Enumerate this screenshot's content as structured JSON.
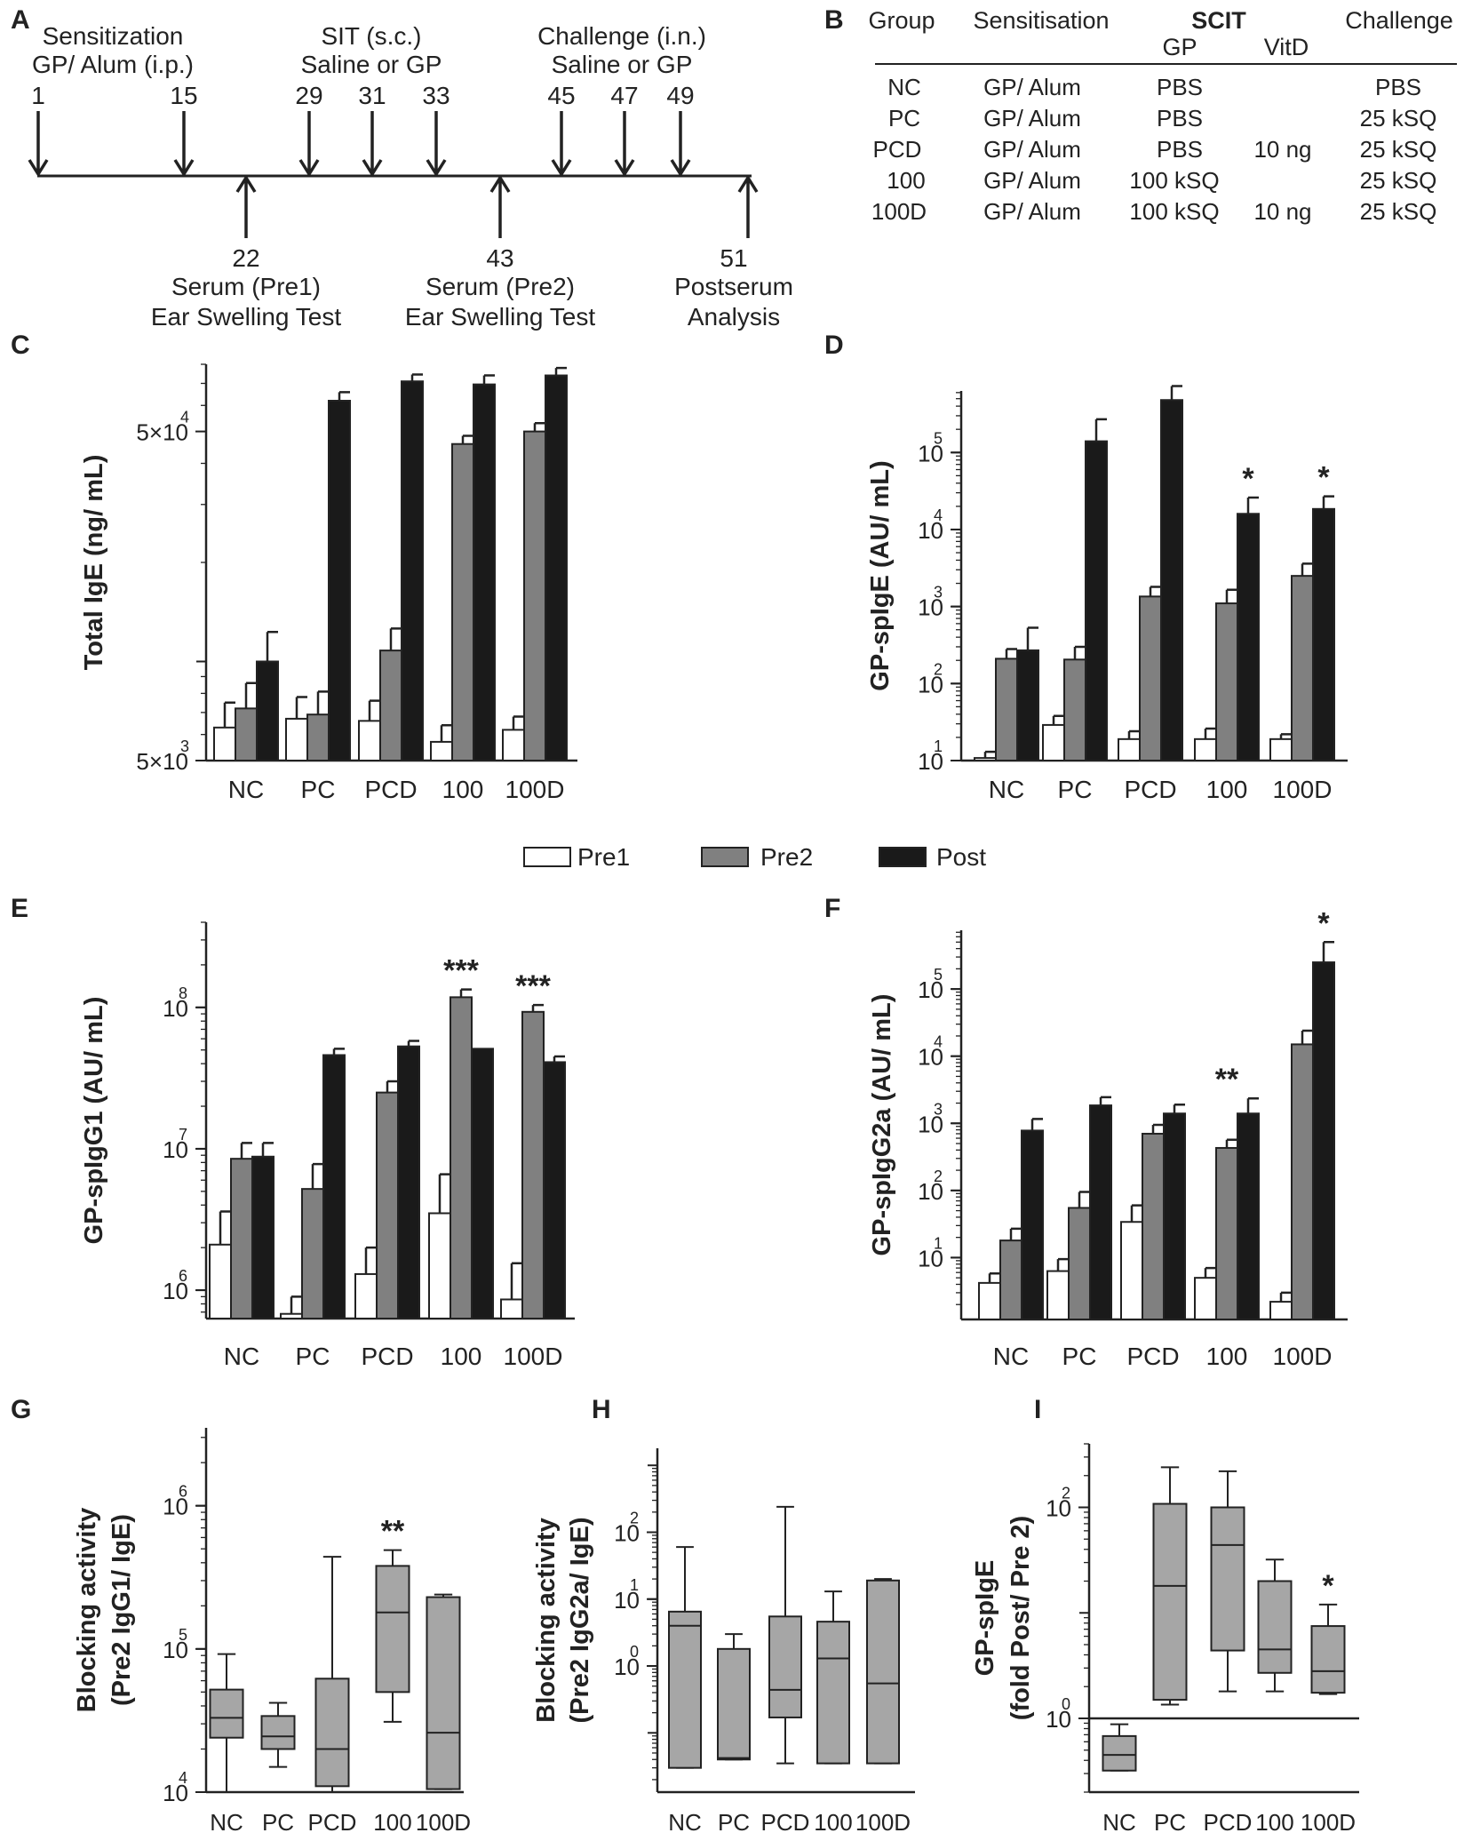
{
  "panel_letters": [
    "A",
    "B",
    "C",
    "D",
    "E",
    "F",
    "G",
    "H",
    "I"
  ],
  "timeline": {
    "top_groups": [
      {
        "label": "Sensitization",
        "sub": "GP/ Alum (i.p.)"
      },
      {
        "label": "SIT (s.c.)",
        "sub": "Saline or GP"
      },
      {
        "label": "Challenge (i.n.)",
        "sub": "Saline or GP"
      }
    ],
    "down_days": [
      "1",
      "15",
      "29",
      "31",
      "33",
      "45",
      "47",
      "49"
    ],
    "up_events": [
      {
        "day": "22",
        "line1": "Serum (Pre1)",
        "line2": "Ear Swelling  Test"
      },
      {
        "day": "43",
        "line1": "Serum (Pre2)",
        "line2": "Ear Swelling  Test"
      },
      {
        "day": "51",
        "line1": "Postserum",
        "line2": "Analysis"
      }
    ]
  },
  "table": {
    "headers": [
      "Group",
      "Sensitisation",
      "SCIT",
      "GP",
      "VitD",
      "Challenge"
    ],
    "rows": [
      [
        "NC",
        "GP/ Alum",
        "PBS",
        "",
        "PBS"
      ],
      [
        "PC",
        "GP/ Alum",
        "PBS",
        "",
        "25 kSQ"
      ],
      [
        "PCD",
        "GP/ Alum",
        "PBS",
        "10 ng",
        "25 kSQ"
      ],
      [
        "100",
        "GP/ Alum",
        "100 kSQ",
        "",
        "25 kSQ"
      ],
      [
        "100D",
        "GP/ Alum",
        "100 kSQ",
        "10 ng",
        "25 kSQ"
      ]
    ]
  },
  "legend": [
    "Pre1",
    "Pre2",
    "Post"
  ],
  "colors": {
    "pre1": "#ffffff",
    "pre2": "#808080",
    "post": "#1a1a1a",
    "box": "#a6a6a6"
  },
  "chart_data": [
    {
      "panel": "C",
      "type": "bar",
      "scale": "log",
      "ylabel": "Total IgE (ng/ mL)",
      "categories": [
        "NC",
        "PC",
        "PCD",
        "100",
        "100D"
      ],
      "ylim": [
        5000,
        80000
      ],
      "ticks": [
        {
          "base": "5×10",
          "exp": "3",
          "value": 5000
        },
        {
          "base": "5×10",
          "exp": "4",
          "value": 50000
        }
      ],
      "series": [
        {
          "name": "Pre1",
          "values": [
            6300,
            6700,
            6600,
            5700,
            6200
          ],
          "errors": [
            7500,
            7800,
            7600,
            6400,
            6800
          ]
        },
        {
          "name": "Pre2",
          "values": [
            7200,
            6900,
            10800,
            45800,
            50000
          ],
          "errors": [
            8600,
            8100,
            12600,
            48500,
            53000
          ]
        },
        {
          "name": "Post",
          "values": [
            10000,
            62000,
            71000,
            69500,
            74000
          ],
          "errors": [
            12300,
            65800,
            74500,
            74000,
            78000
          ]
        }
      ]
    },
    {
      "panel": "D",
      "type": "bar",
      "scale": "log",
      "ylabel": "GP-spIgE (AU/ mL)",
      "categories": [
        "NC",
        "PC",
        "PCD",
        "100",
        "100D"
      ],
      "ylim": [
        10,
        630000
      ],
      "ticks": [
        {
          "base": "10",
          "exp": "1",
          "value": 10
        },
        {
          "base": "10",
          "exp": "2",
          "value": 100
        },
        {
          "base": "10",
          "exp": "3",
          "value": 1000
        },
        {
          "base": "10",
          "exp": "4",
          "value": 10000
        },
        {
          "base": "10",
          "exp": "5",
          "value": 100000
        }
      ],
      "series": [
        {
          "name": "Pre1",
          "values": [
            10.8,
            29,
            19,
            19,
            19
          ],
          "errors": [
            13,
            38,
            24,
            26,
            22
          ]
        },
        {
          "name": "Pre2",
          "values": [
            210,
            205,
            1350,
            1100,
            2500
          ],
          "errors": [
            280,
            300,
            1800,
            1650,
            3600
          ]
        },
        {
          "name": "Post",
          "values": [
            270,
            140000,
            480000,
            16000,
            18500
          ],
          "errors": [
            530,
            270000,
            730000,
            26000,
            27000
          ]
        }
      ],
      "annotations": [
        {
          "category": "100",
          "text": "*"
        },
        {
          "category": "100D",
          "text": "*"
        }
      ]
    },
    {
      "panel": "E",
      "type": "bar",
      "scale": "log",
      "ylabel": "GP-spIgG1 (AU/ mL)",
      "categories": [
        "NC",
        "PC",
        "PCD",
        "100",
        "100D"
      ],
      "ylim": [
        630000,
        400000000
      ],
      "ticks": [
        {
          "base": "10",
          "exp": "6",
          "value": 1000000
        },
        {
          "base": "10",
          "exp": "7",
          "value": 10000000
        },
        {
          "base": "10",
          "exp": "8",
          "value": 100000000
        }
      ],
      "series": [
        {
          "name": "Pre1",
          "values": [
            2100000,
            680000,
            1300000,
            3500000,
            860000
          ],
          "errors": [
            3600000,
            900000,
            2000000,
            6600000,
            1550000
          ]
        },
        {
          "name": "Pre2",
          "values": [
            8500000,
            5200000,
            25000000,
            118000000,
            93000000
          ],
          "errors": [
            11000000,
            7800000,
            30000000,
            134000000,
            104000000
          ]
        },
        {
          "name": "Post",
          "values": [
            8800000,
            46000000,
            53000000,
            51000000,
            41000000
          ],
          "errors": [
            11000000,
            51000000,
            58000000,
            51000000,
            45000000
          ]
        }
      ],
      "annotations": [
        {
          "category": "100",
          "text": "***"
        },
        {
          "category": "100D",
          "text": "***"
        }
      ]
    },
    {
      "panel": "F",
      "type": "bar",
      "scale": "log",
      "ylabel": "GP-spIgG2a (AU/ mL)",
      "categories": [
        "NC",
        "PC",
        "PCD",
        "100",
        "100D"
      ],
      "ylim": [
        1.2,
        750000
      ],
      "ticks": [
        {
          "base": "10",
          "exp": "1",
          "value": 10
        },
        {
          "base": "10",
          "exp": "2",
          "value": 100
        },
        {
          "base": "10",
          "exp": "3",
          "value": 1000
        },
        {
          "base": "10",
          "exp": "4",
          "value": 10000
        },
        {
          "base": "10",
          "exp": "5",
          "value": 100000
        }
      ],
      "series": [
        {
          "name": "Pre1",
          "values": [
            4.2,
            6.3,
            34,
            5,
            2.2
          ],
          "errors": [
            5.8,
            9.5,
            60,
            7,
            3
          ]
        },
        {
          "name": "Pre2",
          "values": [
            18,
            55,
            700,
            430,
            15000
          ],
          "errors": [
            27,
            95,
            950,
            570,
            24000
          ]
        },
        {
          "name": "Post",
          "values": [
            780,
            1850,
            1400,
            1400,
            250000
          ],
          "errors": [
            1160,
            2450,
            1900,
            2350,
            500000
          ]
        }
      ],
      "annotations": [
        {
          "category": "100",
          "text": "**"
        },
        {
          "category": "100D",
          "text": "*"
        }
      ]
    },
    {
      "panel": "G",
      "type": "box",
      "scale": "log",
      "ylabel": "Blocking activity",
      "ylabel2": "(Pre2 IgG1/ IgE)",
      "categories": [
        "NC",
        "PC",
        "PCD",
        "100",
        "100D"
      ],
      "ylim": [
        10000,
        3500000
      ],
      "ticks": [
        {
          "base": "10",
          "exp": "4",
          "value": 10000
        },
        {
          "base": "10",
          "exp": "5",
          "value": 100000
        },
        {
          "base": "10",
          "exp": "6",
          "value": 1000000
        }
      ],
      "boxes": [
        {
          "min": 10000,
          "q1": 24000,
          "median": 33000,
          "q3": 52000,
          "max": 92000
        },
        {
          "min": 15000,
          "q1": 20000,
          "median": 24500,
          "q3": 34000,
          "max": 42000
        },
        {
          "min": 10000,
          "q1": 11000,
          "median": 20000,
          "q3": 62000,
          "max": 440000
        },
        {
          "min": 31000,
          "q1": 50000,
          "median": 180000,
          "q3": 380000,
          "max": 490000
        },
        {
          "min": 10500,
          "q1": 10500,
          "median": 26000,
          "q3": 230000,
          "max": 240000
        }
      ],
      "annotations": [
        {
          "category": "100",
          "text": "**"
        }
      ]
    },
    {
      "panel": "H",
      "type": "box",
      "scale": "log",
      "ylabel": "Blocking activity",
      "ylabel2": "(Pre2 IgG2a/ IgE)",
      "categories": [
        "NC",
        "PC",
        "PCD",
        "100",
        "100D"
      ],
      "ylim": [
        0.013,
        1800
      ],
      "ticks": [
        {
          "base": "10",
          "exp": "0",
          "value": 1
        },
        {
          "base": "10",
          "exp": "1",
          "value": 10
        },
        {
          "base": "10",
          "exp": "2",
          "value": 100
        }
      ],
      "boxes": [
        {
          "min": 0.03,
          "q1": 0.03,
          "median": 4,
          "q3": 6.5,
          "max": 60
        },
        {
          "min": 0.04,
          "q1": 0.04,
          "median": 0.042,
          "q3": 1.8,
          "max": 3
        },
        {
          "min": 0.035,
          "q1": 0.17,
          "median": 0.44,
          "q3": 5.5,
          "max": 240
        },
        {
          "min": 0.035,
          "q1": 0.035,
          "median": 1.3,
          "q3": 4.6,
          "max": 13
        },
        {
          "min": 0.035,
          "q1": 0.035,
          "median": 0.55,
          "q3": 19,
          "max": 20
        }
      ]
    },
    {
      "panel": "I",
      "type": "box",
      "scale": "log",
      "ylabel": "GP-spIgE",
      "ylabel2": "(fold Post/ Pre 2)",
      "categories": [
        "NC",
        "PC",
        "PCD",
        "100",
        "100D"
      ],
      "ylim": [
        0.2,
        400
      ],
      "ticks": [
        {
          "base": "10",
          "exp": "0",
          "value": 1
        },
        {
          "base": "10",
          "exp": "2",
          "value": 100
        }
      ],
      "reference_line": 1,
      "boxes": [
        {
          "min": 0.32,
          "q1": 0.32,
          "median": 0.45,
          "q3": 0.68,
          "max": 0.88
        },
        {
          "min": 1.35,
          "q1": 1.5,
          "median": 18,
          "q3": 108,
          "max": 240
        },
        {
          "min": 1.8,
          "q1": 4.4,
          "median": 44,
          "q3": 100,
          "max": 220
        },
        {
          "min": 1.8,
          "q1": 2.7,
          "median": 4.5,
          "q3": 20,
          "max": 32
        },
        {
          "min": 1.7,
          "q1": 1.75,
          "median": 2.8,
          "q3": 7.5,
          "max": 12
        }
      ],
      "annotations": [
        {
          "category": "100D",
          "text": "*"
        }
      ]
    }
  ]
}
